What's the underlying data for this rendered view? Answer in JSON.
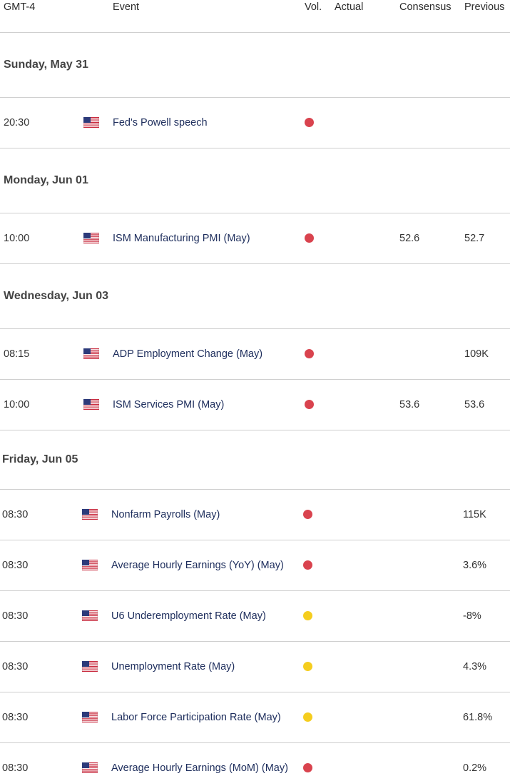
{
  "header": {
    "columns": [
      "GMT-4",
      "Event",
      "Vol.",
      "Actual",
      "Consensus",
      "Previous"
    ]
  },
  "days": [
    {
      "date": "Sunday, May 31",
      "events": [
        {
          "time": "20:30",
          "event": "Fed's Powell speech",
          "vol_color": "#d9434e"
        }
      ]
    },
    {
      "date": "Monday, Jun 01",
      "events": [
        {
          "time": "10:00",
          "event": "ISM Manufacturing PMI (May)",
          "vol_color": "#d9434e",
          "consensus": "52.6",
          "previous": "52.7"
        }
      ]
    },
    {
      "date": "Wednesday, Jun 03",
      "events": [
        {
          "time": "08:15",
          "event": "ADP Employment Change (May)",
          "vol_color": "#d9434e",
          "previous": "109K"
        },
        {
          "time": "10:00",
          "event": "ISM Services PMI (May)",
          "vol_color": "#d9434e",
          "consensus": "53.6",
          "previous": "53.6"
        }
      ]
    },
    {
      "date": "Friday, Jun 05",
      "events": [
        {
          "time": "08:30",
          "event": "Nonfarm Payrolls (May)",
          "vol_color": "#d9434e",
          "previous": "115K"
        },
        {
          "time": "08:30",
          "event": "Average Hourly Earnings (YoY) (May)",
          "vol_color": "#d9434e",
          "previous": "3.6%"
        },
        {
          "time": "08:30",
          "event": "U6 Underemployment Rate (May)",
          "vol_color": "#f5cd1e",
          "previous": "-8%"
        },
        {
          "time": "08:30",
          "event": "Unemployment Rate (May)",
          "vol_color": "#f5cd1e",
          "previous": "4.3%"
        },
        {
          "time": "08:30",
          "event": "Labor Force Participation Rate (May)",
          "vol_color": "#f5cd1e",
          "previous": "61.8%"
        },
        {
          "time": "08:30",
          "event": "Average Hourly Earnings (MoM) (May)",
          "vol_color": "#d9434e",
          "previous": "0.2%"
        }
      ]
    }
  ]
}
